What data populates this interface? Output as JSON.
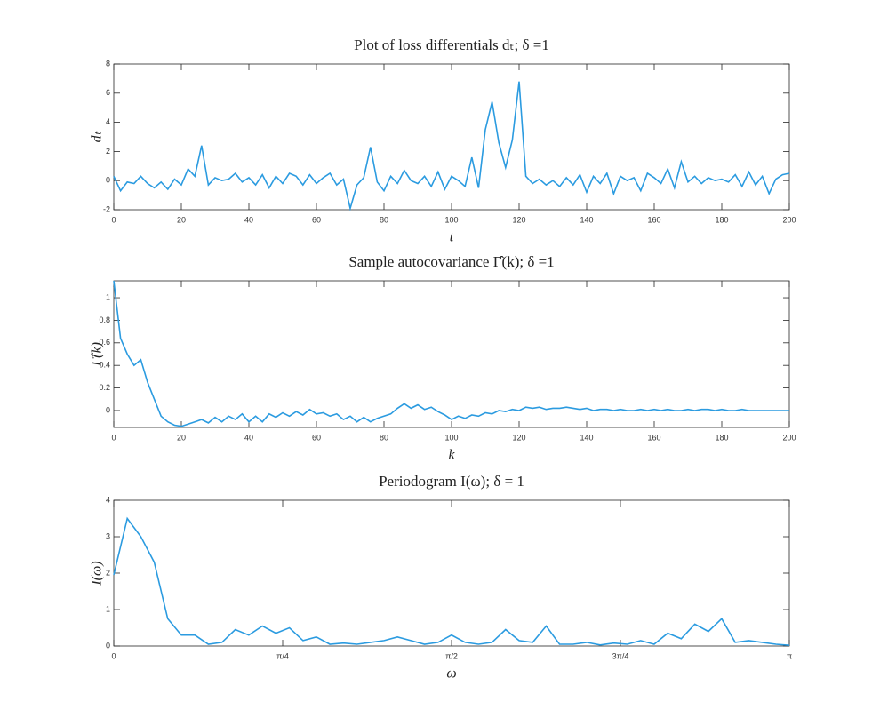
{
  "chart_data": [
    {
      "type": "line",
      "title": "Plot of loss differentials dₜ; δ =1",
      "xlabel": "t",
      "ylabel": "dₜ",
      "color": "#2b9be0",
      "xlim": [
        0,
        200
      ],
      "ylim": [
        -2,
        8
      ],
      "xticks": [
        0,
        20,
        40,
        60,
        80,
        100,
        120,
        140,
        160,
        180,
        200
      ],
      "yticks": [
        -2,
        0,
        2,
        4,
        6,
        8
      ],
      "x": [
        0,
        2,
        4,
        6,
        8,
        10,
        12,
        14,
        16,
        18,
        20,
        22,
        24,
        26,
        28,
        30,
        32,
        34,
        36,
        38,
        40,
        42,
        44,
        46,
        48,
        50,
        52,
        54,
        56,
        58,
        60,
        62,
        64,
        66,
        68,
        70,
        72,
        74,
        76,
        78,
        80,
        82,
        84,
        86,
        88,
        90,
        92,
        94,
        96,
        98,
        100,
        102,
        104,
        106,
        108,
        110,
        112,
        114,
        116,
        118,
        120,
        122,
        124,
        126,
        128,
        130,
        132,
        134,
        136,
        138,
        140,
        142,
        144,
        146,
        148,
        150,
        152,
        154,
        156,
        158,
        160,
        162,
        164,
        166,
        168,
        170,
        172,
        174,
        176,
        178,
        180,
        182,
        184,
        186,
        188,
        190,
        192,
        194,
        196,
        198,
        200
      ],
      "values": [
        0.3,
        -0.7,
        -0.1,
        -0.2,
        0.3,
        -0.2,
        -0.5,
        -0.1,
        -0.6,
        0.1,
        -0.3,
        0.8,
        0.3,
        2.4,
        -0.3,
        0.2,
        0,
        0.1,
        0.5,
        -0.1,
        0.2,
        -0.3,
        0.4,
        -0.5,
        0.3,
        -0.2,
        0.5,
        0.3,
        -0.3,
        0.4,
        -0.2,
        0.2,
        0.5,
        -0.3,
        0.1,
        -1.9,
        -0.3,
        0.2,
        2.3,
        -0.1,
        -0.7,
        0.3,
        -0.2,
        0.7,
        0,
        -0.2,
        0.3,
        -0.4,
        0.6,
        -0.6,
        0.3,
        0,
        -0.4,
        1.6,
        -0.5,
        3.5,
        5.4,
        2.6,
        0.9,
        2.8,
        6.8,
        0.3,
        -0.2,
        0.1,
        -0.3,
        0,
        -0.4,
        0.2,
        -0.3,
        0.4,
        -0.8,
        0.3,
        -0.2,
        0.5,
        -0.9,
        0.3,
        0,
        0.2,
        -0.7,
        0.5,
        0.2,
        -0.2,
        0.8,
        -0.5,
        1.3,
        -0.1,
        0.3,
        -0.2,
        0.2,
        0,
        0.1,
        -0.1,
        0.4,
        -0.4,
        0.6,
        -0.3,
        0.3,
        -0.9,
        0.1,
        0.4,
        0.5
      ]
    },
    {
      "type": "line",
      "title": "Sample autocovariance Γ̂(k); δ =1",
      "xlabel": "k",
      "ylabel": "Γ̂(k)",
      "color": "#2b9be0",
      "xlim": [
        0,
        200
      ],
      "ylim": [
        -0.15,
        1.15
      ],
      "xticks": [
        0,
        20,
        40,
        60,
        80,
        100,
        120,
        140,
        160,
        180,
        200
      ],
      "yticks": [
        0,
        0.2,
        0.4,
        0.6,
        0.8,
        1
      ],
      "x": [
        0,
        2,
        4,
        6,
        8,
        10,
        12,
        14,
        16,
        18,
        20,
        22,
        24,
        26,
        28,
        30,
        32,
        34,
        36,
        38,
        40,
        42,
        44,
        46,
        48,
        50,
        52,
        54,
        56,
        58,
        60,
        62,
        64,
        66,
        68,
        70,
        72,
        74,
        76,
        78,
        80,
        82,
        84,
        86,
        88,
        90,
        92,
        94,
        96,
        98,
        100,
        102,
        104,
        106,
        108,
        110,
        112,
        114,
        116,
        118,
        120,
        122,
        124,
        126,
        128,
        130,
        132,
        134,
        136,
        138,
        140,
        142,
        144,
        146,
        148,
        150,
        152,
        154,
        156,
        158,
        160,
        162,
        164,
        166,
        168,
        170,
        172,
        174,
        176,
        178,
        180,
        182,
        184,
        186,
        188,
        190,
        192,
        194,
        196,
        198,
        200
      ],
      "values": [
        1.15,
        0.64,
        0.5,
        0.4,
        0.45,
        0.25,
        0.1,
        -0.05,
        -0.1,
        -0.13,
        -0.14,
        -0.12,
        -0.1,
        -0.08,
        -0.11,
        -0.06,
        -0.1,
        -0.05,
        -0.08,
        -0.03,
        -0.1,
        -0.05,
        -0.1,
        -0.03,
        -0.06,
        -0.02,
        -0.05,
        -0.01,
        -0.04,
        0.01,
        -0.03,
        -0.02,
        -0.05,
        -0.03,
        -0.08,
        -0.05,
        -0.1,
        -0.06,
        -0.1,
        -0.07,
        -0.05,
        -0.03,
        0.02,
        0.06,
        0.02,
        0.05,
        0.01,
        0.03,
        -0.01,
        -0.04,
        -0.08,
        -0.05,
        -0.07,
        -0.04,
        -0.05,
        -0.02,
        -0.03,
        0,
        -0.01,
        0.01,
        0,
        0.03,
        0.02,
        0.03,
        0.01,
        0.02,
        0.02,
        0.03,
        0.02,
        0.01,
        0.02,
        0,
        0.01,
        0.01,
        0,
        0.01,
        0,
        0,
        0.01,
        0,
        0.01,
        0,
        0.01,
        0,
        0,
        0.01,
        0,
        0.01,
        0.01,
        0,
        0.01,
        0,
        0,
        0.01,
        0,
        0,
        0,
        0,
        0,
        0,
        0
      ]
    },
    {
      "type": "line",
      "title": "Periodogram I(ω); δ = 1",
      "xlabel": "ω",
      "ylabel": "I(ω)",
      "color": "#2b9be0",
      "xlim": [
        0,
        3.1416
      ],
      "ylim": [
        0,
        4
      ],
      "xticks": [
        0,
        {
          "value": 0.7854,
          "label": "π/4"
        },
        {
          "value": 1.5708,
          "label": "π/2"
        },
        {
          "value": 2.3562,
          "label": "3π/4"
        },
        {
          "value": 3.1416,
          "label": "π"
        }
      ],
      "yticks": [
        0,
        1,
        2,
        3,
        4
      ],
      "x": [
        0,
        0.063,
        0.126,
        0.188,
        0.251,
        0.314,
        0.377,
        0.44,
        0.503,
        0.565,
        0.628,
        0.691,
        0.754,
        0.817,
        0.88,
        0.942,
        1.005,
        1.068,
        1.131,
        1.194,
        1.257,
        1.319,
        1.382,
        1.445,
        1.508,
        1.571,
        1.634,
        1.696,
        1.759,
        1.822,
        1.885,
        1.948,
        2.011,
        2.073,
        2.136,
        2.199,
        2.262,
        2.325,
        2.388,
        2.45,
        2.513,
        2.576,
        2.639,
        2.702,
        2.765,
        2.827,
        2.89,
        2.953,
        3.016,
        3.079,
        3.142
      ],
      "values": [
        1.95,
        3.5,
        3.0,
        2.3,
        0.75,
        0.3,
        0.3,
        0.05,
        0.1,
        0.45,
        0.3,
        0.55,
        0.35,
        0.5,
        0.15,
        0.25,
        0.05,
        0.08,
        0.05,
        0.1,
        0.15,
        0.25,
        0.15,
        0.05,
        0.1,
        0.3,
        0.1,
        0.05,
        0.1,
        0.45,
        0.15,
        0.1,
        0.55,
        0.05,
        0.05,
        0.1,
        0.03,
        0.08,
        0.05,
        0.15,
        0.05,
        0.35,
        0.2,
        0.6,
        0.4,
        0.75,
        0.1,
        0.15,
        0.1,
        0.05,
        0.02
      ]
    }
  ]
}
